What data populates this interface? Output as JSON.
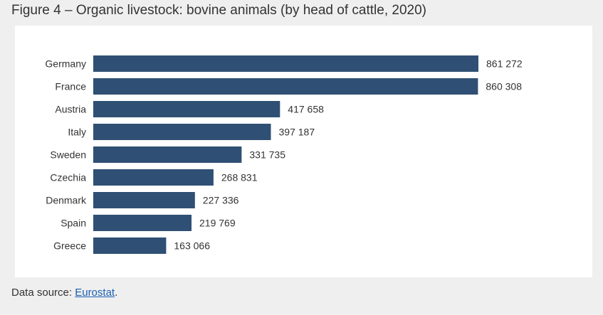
{
  "figure": {
    "title": "Figure 4 – Organic livestock: bovine animals (by head of cattle, 2020)"
  },
  "source": {
    "prefix": "Data source: ",
    "link_text": "Eurostat",
    "suffix": "."
  },
  "colors": {
    "bar": "#2f5074",
    "text": "#333333",
    "link": "#1a5fb4",
    "page_bg": "#efefef",
    "panel_bg": "#ffffff"
  },
  "chart_data": {
    "type": "bar",
    "orientation": "horizontal",
    "title": "Figure 4 – Organic livestock: bovine animals (by head of cattle, 2020)",
    "categories": [
      "Germany",
      "France",
      "Austria",
      "Italy",
      "Sweden",
      "Czechia",
      "Denmark",
      "Spain",
      "Greece"
    ],
    "values": [
      861272,
      860308,
      417658,
      397187,
      331735,
      268831,
      227336,
      219769,
      163066
    ],
    "value_labels": [
      "861 272",
      "860 308",
      "417 658",
      "397 187",
      "331 735",
      "268 831",
      "227 336",
      "219 769",
      "163 066"
    ],
    "xlim": [
      0,
      861272
    ],
    "grid": false,
    "legend": "none"
  }
}
